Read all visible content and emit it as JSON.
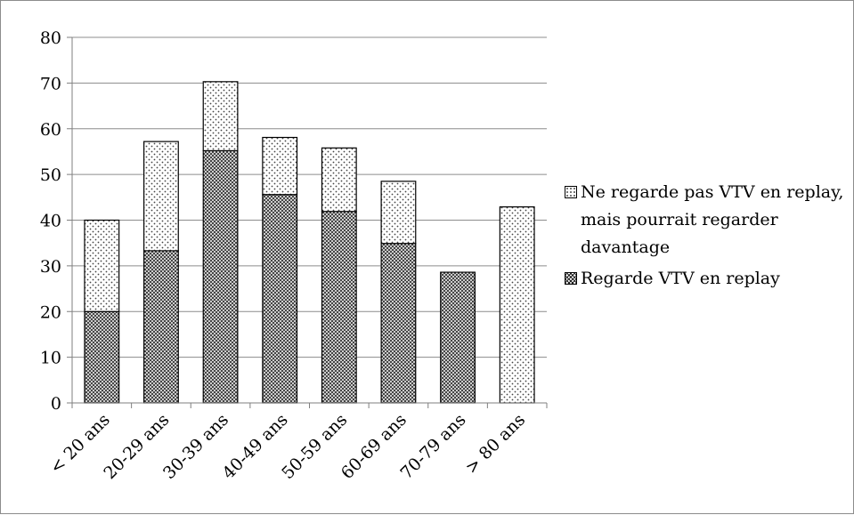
{
  "chart_data": {
    "type": "bar",
    "stacked": true,
    "title": "",
    "xlabel": "",
    "ylabel": "",
    "ylim": [
      0,
      80
    ],
    "yticks": [
      0,
      10,
      20,
      30,
      40,
      50,
      60,
      70,
      80
    ],
    "grid": "horizontal",
    "legend_position": "right",
    "categories": [
      "< 20 ans",
      "20-29 ans",
      "30-39 ans",
      "40-49 ans",
      "50-59 ans",
      "60-69 ans",
      "70-79 ans",
      "> 80 ans"
    ],
    "series": [
      {
        "name": "Regarde VTV en replay",
        "pattern": "crosshatch",
        "values": [
          20,
          33.3,
          55.2,
          45.6,
          41.9,
          34.9,
          28.6,
          0
        ]
      },
      {
        "name": "Ne regarde pas VTV en replay, mais pourrait regarder davantage",
        "pattern": "dots",
        "values": [
          20,
          23.9,
          15.1,
          12.5,
          13.9,
          13.6,
          0,
          42.9
        ]
      }
    ],
    "colors": {
      "axis": "#7f7f7f",
      "grid": "#8c8c8c",
      "bar_edge": "#000000",
      "pattern_ink": "#333333"
    }
  }
}
